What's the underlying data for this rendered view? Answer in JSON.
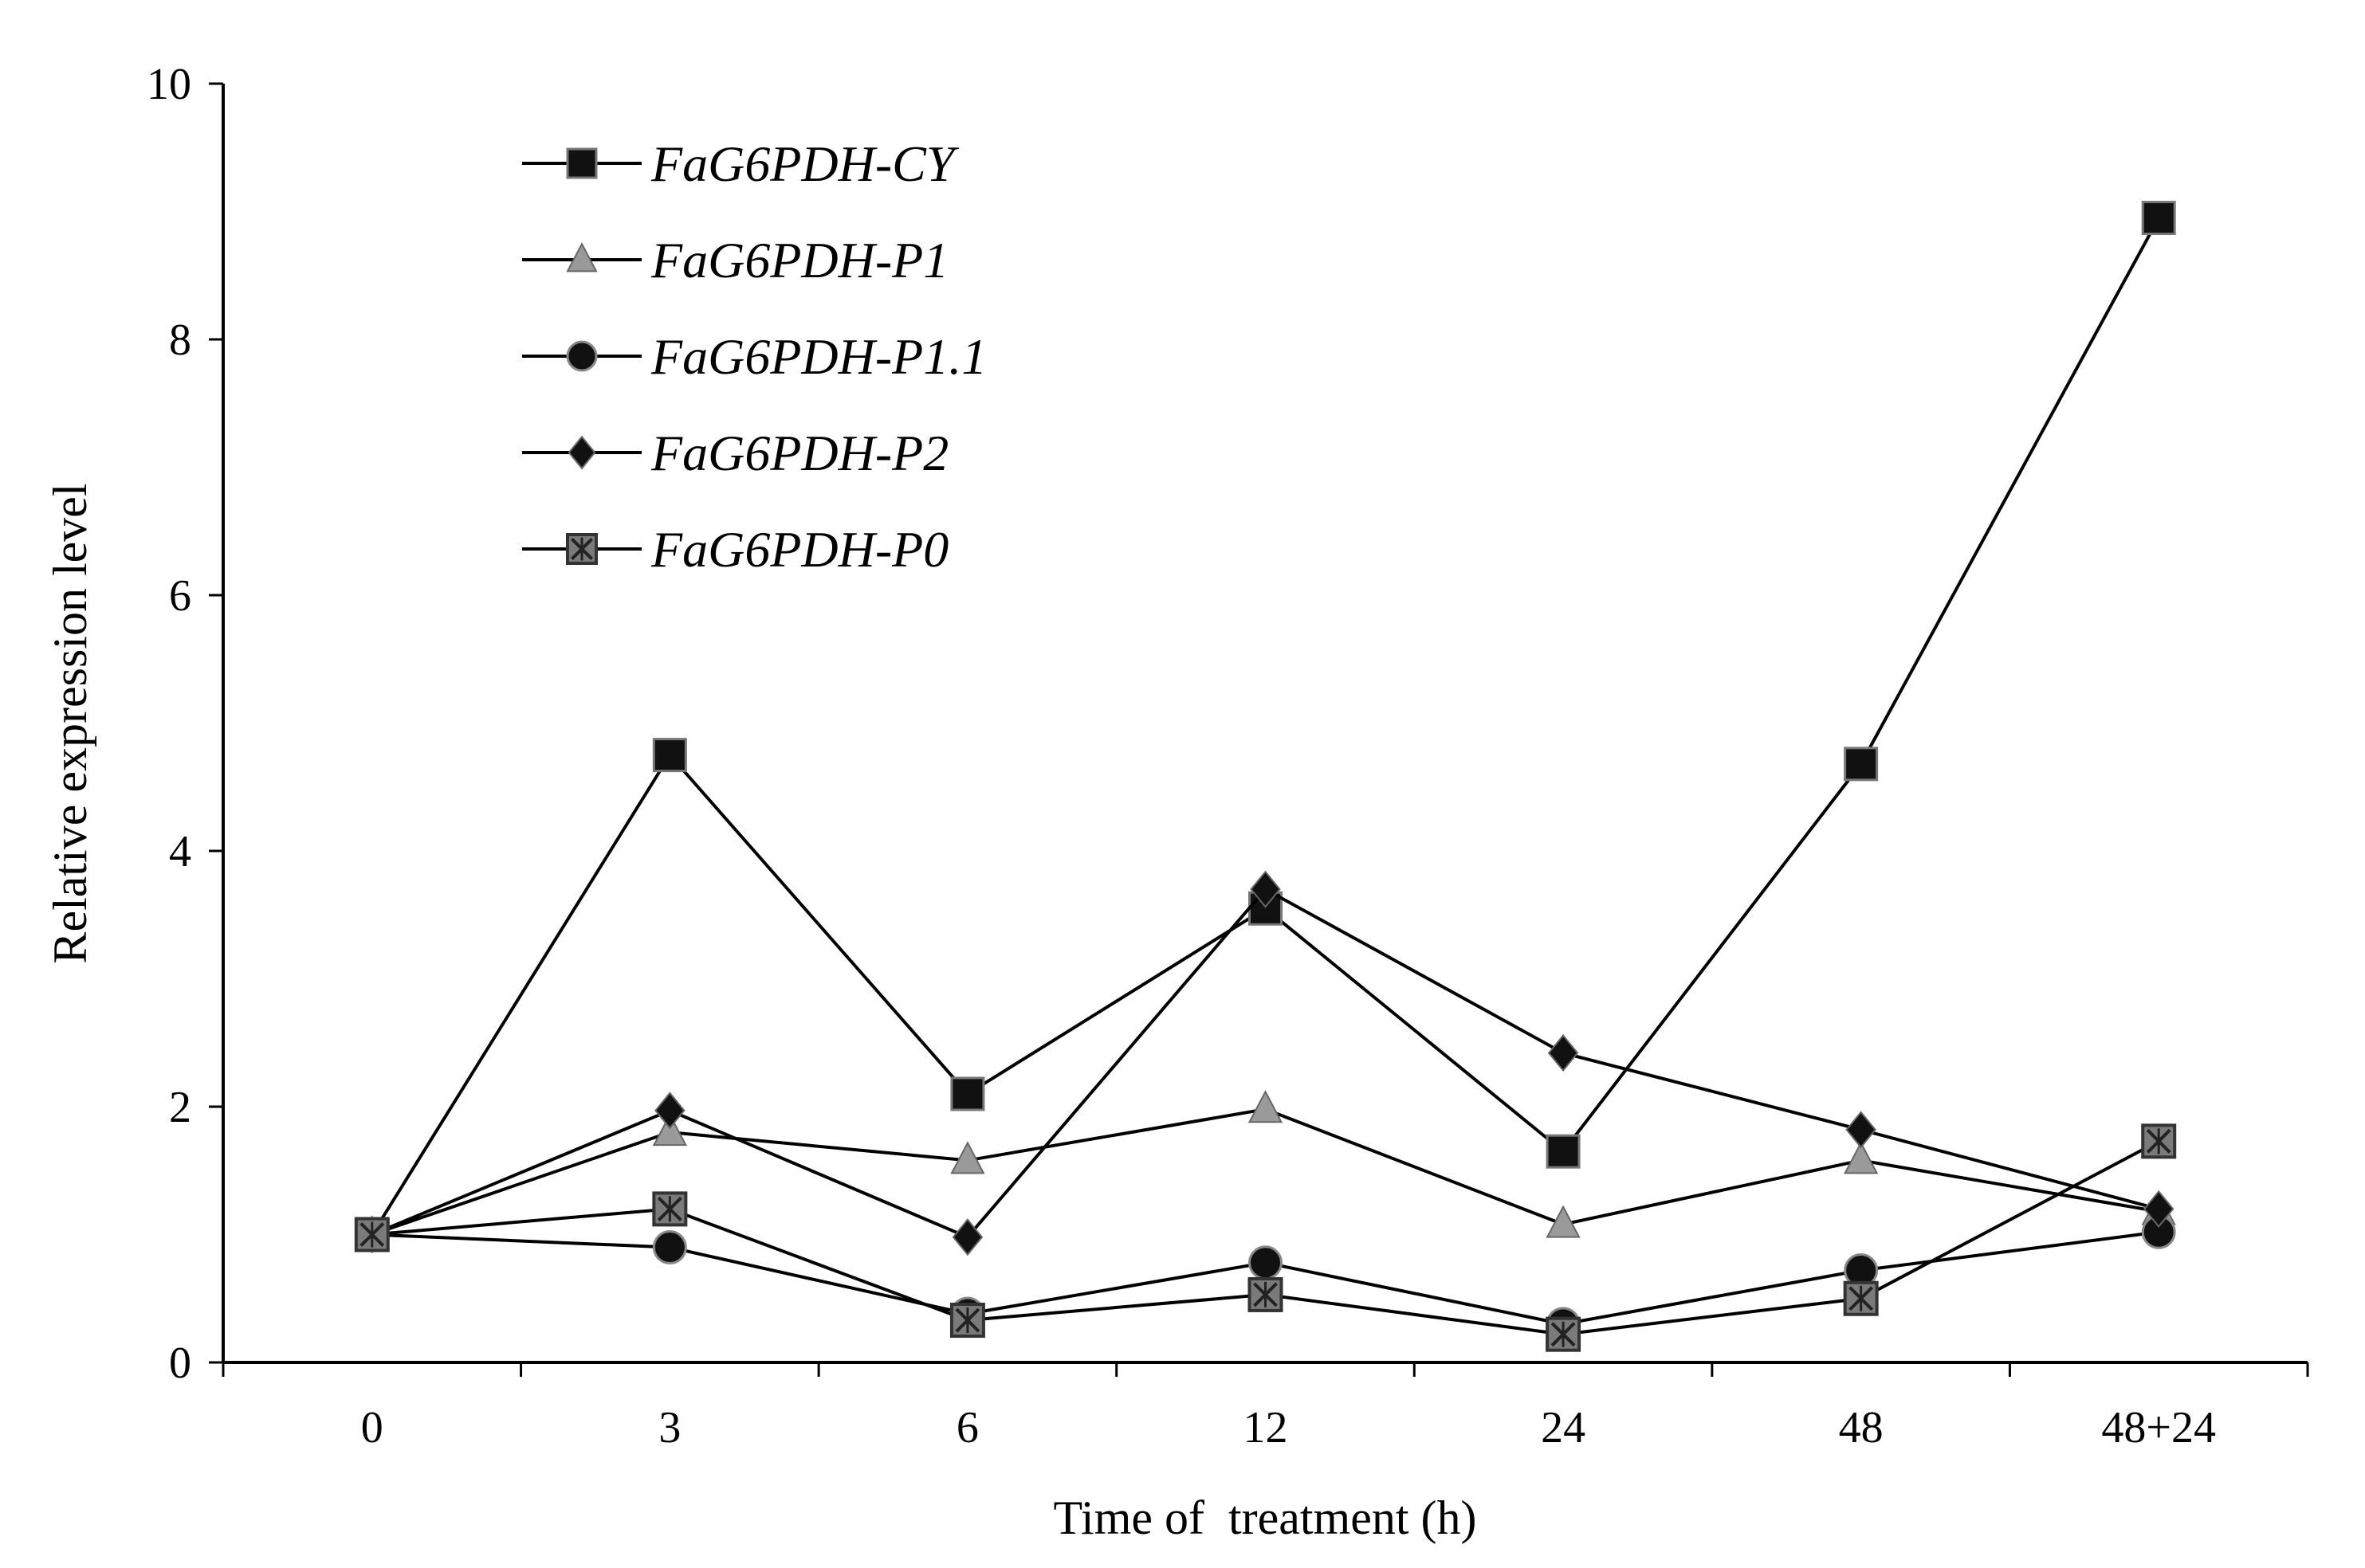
{
  "chart_data": {
    "type": "line",
    "title": "",
    "xlabel": "Time of  treatment (h)",
    "ylabel": "Relative expression level",
    "categories": [
      "0",
      "3",
      "6",
      "12",
      "24",
      "48",
      "48+24"
    ],
    "ylim": [
      0,
      10
    ],
    "yticks": [
      0,
      2,
      4,
      6,
      8,
      10
    ],
    "grid": false,
    "legend": "top-left",
    "series": [
      {
        "name": "FaG6PDH-CY",
        "marker": "square",
        "color": "#000000",
        "values": [
          1.0,
          4.75,
          2.1,
          3.55,
          1.65,
          4.68,
          8.95
        ]
      },
      {
        "name": "FaG6PDH-P1",
        "marker": "triangle",
        "color": "#9a9a9a",
        "values": [
          1.0,
          1.8,
          1.58,
          1.98,
          1.08,
          1.58,
          1.18
        ]
      },
      {
        "name": "FaG6PDH-P1.1",
        "marker": "circle",
        "color": "#000000",
        "values": [
          1.0,
          0.9,
          0.38,
          0.78,
          0.3,
          0.72,
          1.02
        ]
      },
      {
        "name": "FaG6PDH-P2",
        "marker": "diamond",
        "color": "#000000",
        "values": [
          1.0,
          1.97,
          0.98,
          3.7,
          2.42,
          1.82,
          1.2
        ]
      },
      {
        "name": "FaG6PDH-P0",
        "marker": "xsquare",
        "color": "#7a7a7a",
        "values": [
          1.0,
          1.2,
          0.33,
          0.53,
          0.22,
          0.5,
          1.73
        ]
      }
    ]
  }
}
